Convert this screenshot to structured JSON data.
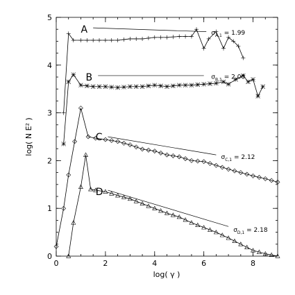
{
  "chart_data": {
    "type": "line",
    "xlabel": "log( γ )",
    "ylabel": "log( N E² )",
    "xlim": [
      0,
      9
    ],
    "ylim": [
      0,
      5
    ],
    "x_ticks": [
      0,
      2,
      4,
      6,
      8
    ],
    "y_ticks": [
      0,
      1,
      2,
      3,
      4,
      5
    ],
    "x_minor_per_major": 4,
    "y_minor_per_major": 4,
    "series": [
      {
        "name": "A",
        "marker": "plus",
        "x": [
          0.3,
          0.5,
          0.7,
          1.0,
          1.5,
          2.0,
          2.5,
          3.0,
          3.5,
          4.0,
          4.5,
          5.0,
          5.5,
          5.7,
          6.0,
          6.2,
          6.5,
          6.8,
          7.0,
          7.2,
          7.4,
          7.6
        ],
        "y": [
          3.0,
          4.66,
          4.52,
          4.52,
          4.52,
          4.52,
          4.52,
          4.55,
          4.55,
          4.58,
          4.58,
          4.6,
          4.6,
          4.75,
          4.35,
          4.55,
          4.7,
          4.35,
          4.58,
          4.5,
          4.4,
          4.15
        ]
      },
      {
        "name": "B",
        "marker": "star",
        "x": [
          0.3,
          0.5,
          0.7,
          1.0,
          1.5,
          2.0,
          2.5,
          3.0,
          3.5,
          4.0,
          4.5,
          5.0,
          5.5,
          6.0,
          6.5,
          6.8,
          7.0,
          7.3,
          7.6,
          7.8,
          8.0,
          8.2,
          8.4
        ],
        "y": [
          2.35,
          3.65,
          3.8,
          3.58,
          3.55,
          3.55,
          3.53,
          3.55,
          3.55,
          3.58,
          3.55,
          3.58,
          3.58,
          3.6,
          3.62,
          3.65,
          3.6,
          3.7,
          3.78,
          3.65,
          3.7,
          3.35,
          3.55
        ]
      },
      {
        "name": "C",
        "marker": "diamond",
        "x": [
          0,
          0.3,
          0.5,
          0.75,
          1.0,
          1.3,
          1.6,
          2.0,
          2.5,
          3.0,
          3.5,
          4.0,
          4.5,
          5.0,
          5.5,
          6.0,
          6.5,
          7.0,
          7.5,
          8.0,
          8.5,
          9.0
        ],
        "y": [
          0.2,
          1.0,
          1.7,
          2.4,
          3.1,
          2.5,
          2.47,
          2.44,
          2.4,
          2.33,
          2.24,
          2.2,
          2.12,
          2.08,
          2.0,
          1.98,
          1.9,
          1.82,
          1.75,
          1.68,
          1.62,
          1.55
        ]
      },
      {
        "name": "D",
        "marker": "triangle",
        "x": [
          0.5,
          0.7,
          1.0,
          1.2,
          1.4,
          1.6,
          2.0,
          2.5,
          3.0,
          3.5,
          4.0,
          4.5,
          5.0,
          5.5,
          6.0,
          6.5,
          7.0,
          7.5,
          8.0,
          8.5,
          9.0
        ],
        "y": [
          0.0,
          0.7,
          1.45,
          2.12,
          1.4,
          1.38,
          1.35,
          1.27,
          1.2,
          1.1,
          1.0,
          0.9,
          0.82,
          0.7,
          0.6,
          0.5,
          0.38,
          0.25,
          0.12,
          0.05,
          0.0
        ]
      }
    ],
    "labels": [
      {
        "letter": "A",
        "sigma_base": "σ",
        "sigma_sub": "A,1",
        "text": " = 1.99"
      },
      {
        "letter": "B",
        "sigma_base": "σ",
        "sigma_sub": "B,1",
        "text": " = 2.00"
      },
      {
        "letter": "C",
        "sigma_base": "σ",
        "sigma_sub": "C,1",
        "text": " = 2.12"
      },
      {
        "letter": "D",
        "sigma_base": "σ",
        "sigma_sub": "D,1",
        "text": " = 2.18"
      }
    ],
    "label_anchors": [
      {
        "letter_xy": [
          1.0,
          4.75
        ],
        "line": [
          [
            1.5,
            4.78
          ],
          [
            6.1,
            4.7
          ]
        ],
        "sigma_xy": [
          6.3,
          4.68
        ]
      },
      {
        "letter_xy": [
          1.2,
          3.75
        ],
        "line": [
          [
            1.7,
            3.78
          ],
          [
            6.0,
            3.78
          ]
        ],
        "sigma_xy": [
          6.3,
          3.76
        ]
      },
      {
        "letter_xy": [
          1.6,
          2.5
        ],
        "line": [
          [
            2.1,
            2.5
          ],
          [
            6.5,
            2.12
          ]
        ],
        "sigma_xy": [
          6.7,
          2.08
        ]
      },
      {
        "letter_xy": [
          1.6,
          1.35
        ],
        "line": [
          [
            2.1,
            1.38
          ],
          [
            7.0,
            0.62
          ]
        ],
        "sigma_xy": [
          7.2,
          0.55
        ]
      }
    ]
  }
}
